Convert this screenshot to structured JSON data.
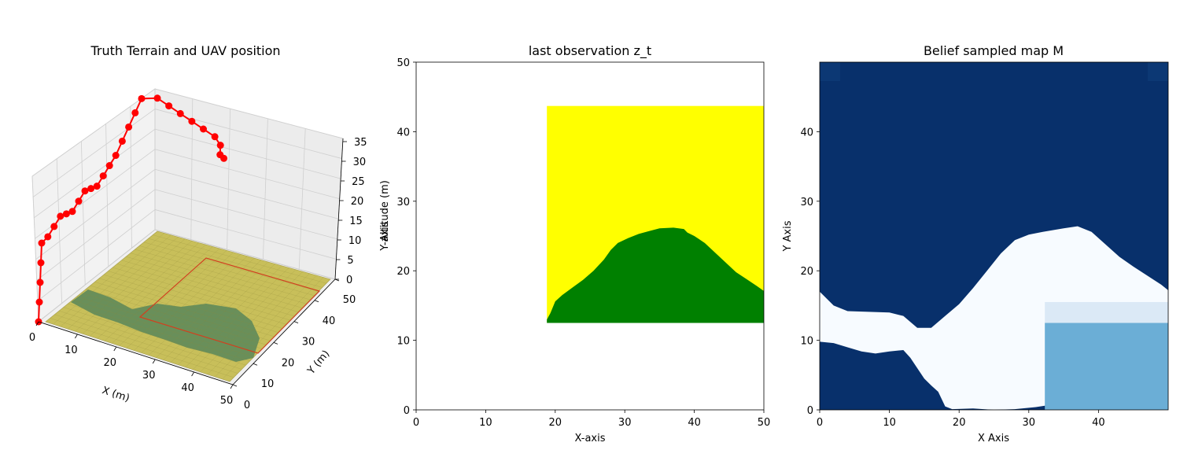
{
  "chart_data": [
    {
      "type": "scatter",
      "subtype": "3d-surface-with-trajectory",
      "title": "Truth Terrain and UAV position",
      "xlabel": "X (m)",
      "ylabel": "Y (m)",
      "zlabel": "",
      "xlim": [
        0,
        50
      ],
      "ylim": [
        0,
        50
      ],
      "zlim": [
        0,
        35
      ],
      "x_ticks": [
        "0",
        "10",
        "20",
        "30",
        "40",
        "50"
      ],
      "y_ticks": [
        "0",
        "10",
        "20",
        "30",
        "40",
        "50"
      ],
      "z_ticks": [
        "0",
        "5",
        "10",
        "15",
        "20",
        "25",
        "30",
        "35"
      ],
      "grid": true,
      "colors": {
        "terrain_low": "#c8bf5a",
        "terrain_high": "#5e8a5a",
        "trajectory": "#ff0000",
        "observation_box": "#d04020",
        "pane": "#f2f2f2",
        "grid": "#d0d0d0"
      },
      "uav_trajectory": [
        {
          "x": 0,
          "y": 0,
          "z": 0
        },
        {
          "x": 0,
          "y": 0,
          "z": 5
        },
        {
          "x": 0,
          "y": 0,
          "z": 10
        },
        {
          "x": 0,
          "y": 0,
          "z": 15
        },
        {
          "x": 0,
          "y": 0,
          "z": 20
        },
        {
          "x": 0,
          "y": 3,
          "z": 20
        },
        {
          "x": 0,
          "y": 6,
          "z": 21
        },
        {
          "x": 0,
          "y": 9,
          "z": 22
        },
        {
          "x": 0,
          "y": 12,
          "z": 21
        },
        {
          "x": 0,
          "y": 15,
          "z": 20
        },
        {
          "x": 0,
          "y": 18,
          "z": 21
        },
        {
          "x": 0,
          "y": 21,
          "z": 22
        },
        {
          "x": 0,
          "y": 24,
          "z": 21
        },
        {
          "x": 0,
          "y": 27,
          "z": 20
        },
        {
          "x": 0,
          "y": 30,
          "z": 21
        },
        {
          "x": 0,
          "y": 33,
          "z": 22
        },
        {
          "x": 0,
          "y": 36,
          "z": 23
        },
        {
          "x": 0,
          "y": 39,
          "z": 25
        },
        {
          "x": 0,
          "y": 42,
          "z": 27
        },
        {
          "x": 0,
          "y": 45,
          "z": 29
        },
        {
          "x": 0,
          "y": 48,
          "z": 31
        },
        {
          "x": 3,
          "y": 50,
          "z": 31
        },
        {
          "x": 6,
          "y": 50,
          "z": 30
        },
        {
          "x": 9,
          "y": 50,
          "z": 29
        },
        {
          "x": 12,
          "y": 50,
          "z": 28
        },
        {
          "x": 15,
          "y": 50,
          "z": 27
        },
        {
          "x": 18,
          "y": 50,
          "z": 26
        },
        {
          "x": 20,
          "y": 49,
          "z": 25
        },
        {
          "x": 21,
          "y": 47,
          "z": 24
        },
        {
          "x": 21,
          "y": 49,
          "z": 22
        }
      ]
    },
    {
      "type": "heatmap",
      "title": "last observation z_t",
      "xlabel": "X-axis",
      "ylabel": "Y-axis",
      "ylabel_overlap": "Altitude (m)",
      "xlim": [
        0,
        50
      ],
      "ylim": [
        0,
        50
      ],
      "x_ticks": [
        "0",
        "10",
        "20",
        "30",
        "40",
        "50"
      ],
      "y_ticks": [
        "0",
        "10",
        "20",
        "30",
        "40",
        "50"
      ],
      "observation_window": {
        "x0": 18.8,
        "x1": 50,
        "y0": 12.5,
        "y1": 43.7
      },
      "colors": {
        "background": "#ffff00",
        "region": "#008000"
      },
      "region_boundary": [
        [
          18.8,
          13.0
        ],
        [
          19.3,
          13.9
        ],
        [
          20.0,
          15.6
        ],
        [
          21.0,
          16.5
        ],
        [
          22.5,
          17.6
        ],
        [
          24.0,
          18.7
        ],
        [
          25.5,
          20.0
        ],
        [
          27.0,
          21.6
        ],
        [
          28.0,
          23.0
        ],
        [
          29.0,
          24.0
        ],
        [
          30.5,
          24.7
        ],
        [
          32.0,
          25.3
        ],
        [
          33.5,
          25.7
        ],
        [
          35.0,
          26.1
        ],
        [
          37.0,
          26.2
        ],
        [
          38.5,
          26.0
        ],
        [
          39.0,
          25.5
        ],
        [
          40.0,
          25.0
        ],
        [
          41.5,
          24.0
        ],
        [
          43.0,
          22.6
        ],
        [
          44.5,
          21.2
        ],
        [
          46.0,
          19.8
        ],
        [
          47.5,
          18.8
        ],
        [
          49.0,
          17.8
        ],
        [
          50.0,
          17.1
        ]
      ]
    },
    {
      "type": "heatmap",
      "title": "Belief sampled map M",
      "xlabel": "X Axis",
      "ylabel": "Y Axis",
      "xlim": [
        0,
        50
      ],
      "ylim": [
        0,
        50
      ],
      "x_ticks": [
        "0",
        "10",
        "20",
        "30",
        "40"
      ],
      "y_ticks": [
        "0",
        "10",
        "20",
        "30",
        "40"
      ],
      "colormap": "Blues",
      "colors": {
        "dark": "#08306b",
        "light": "#f7fbff",
        "mid": "#6baed6",
        "pale": "#dbe9f6"
      },
      "upper_boundary": [
        [
          0,
          17
        ],
        [
          2,
          15
        ],
        [
          4,
          14.2
        ],
        [
          7,
          14.1
        ],
        [
          10,
          14.0
        ],
        [
          12,
          13.5
        ],
        [
          14,
          11.8
        ],
        [
          16,
          11.8
        ],
        [
          18,
          13.5
        ],
        [
          20,
          15.2
        ],
        [
          22,
          17.5
        ],
        [
          24,
          20
        ],
        [
          26,
          22.5
        ],
        [
          28,
          24.4
        ],
        [
          30,
          25.2
        ],
        [
          32,
          25.6
        ],
        [
          35,
          26.1
        ],
        [
          37,
          26.4
        ],
        [
          39,
          25.6
        ],
        [
          41,
          23.8
        ],
        [
          43,
          22
        ],
        [
          45,
          20.6
        ],
        [
          47,
          19.3
        ],
        [
          49,
          18
        ],
        [
          50,
          17.2
        ]
      ],
      "lower_boundary": [
        [
          0,
          9.8
        ],
        [
          2,
          9.6
        ],
        [
          4,
          9.0
        ],
        [
          6,
          8.4
        ],
        [
          8,
          8.1
        ],
        [
          10,
          8.4
        ],
        [
          12,
          8.6
        ],
        [
          13,
          7.5
        ],
        [
          14,
          6.0
        ],
        [
          15,
          4.5
        ],
        [
          16,
          3.5
        ],
        [
          17,
          2.6
        ],
        [
          18,
          0.5
        ],
        [
          19,
          0.1
        ],
        [
          22,
          0.2
        ],
        [
          25,
          0
        ],
        [
          28,
          0.1
        ],
        [
          31,
          0.4
        ],
        [
          32.3,
          0.6
        ]
      ],
      "uncertain_patch": {
        "x0": 32.3,
        "x1": 50,
        "y0": 0,
        "y1": 12.5,
        "value": "mid"
      },
      "uncertain_band": {
        "x0": 32.3,
        "x1": 50,
        "y0": 12.5,
        "y1": 15.5,
        "value": "pale"
      }
    }
  ]
}
